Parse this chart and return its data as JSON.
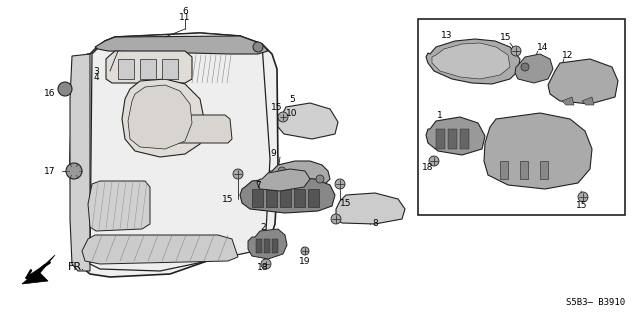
{
  "bg_color": "#ffffff",
  "diagram_code": "S5B3– B3910",
  "fig_width": 6.4,
  "fig_height": 3.19,
  "dpi": 100,
  "line_color": "#222222",
  "fill_light": "#e8e8e8",
  "fill_mid": "#cccccc",
  "fill_dark": "#999999",
  "fill_darker": "#666666"
}
